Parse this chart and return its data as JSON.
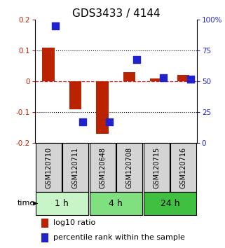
{
  "title": "GDS3433 / 4144",
  "samples": [
    "GSM120710",
    "GSM120711",
    "GSM120648",
    "GSM120708",
    "GSM120715",
    "GSM120716"
  ],
  "log10_ratio": [
    0.11,
    -0.09,
    -0.17,
    0.03,
    0.01,
    0.02
  ],
  "percentile_rank": [
    95,
    17,
    17,
    68,
    53,
    52
  ],
  "groups": [
    {
      "label": "1 h",
      "indices": [
        0,
        1
      ],
      "color": "#c8f5c8"
    },
    {
      "label": "4 h",
      "indices": [
        2,
        3
      ],
      "color": "#80e080"
    },
    {
      "label": "24 h",
      "indices": [
        4,
        5
      ],
      "color": "#40c040"
    }
  ],
  "ylim_left": [
    -0.2,
    0.2
  ],
  "ylim_right": [
    0,
    100
  ],
  "yticks_left": [
    -0.2,
    -0.1,
    0.0,
    0.1,
    0.2
  ],
  "yticks_right": [
    0,
    25,
    50,
    75,
    100
  ],
  "bar_color": "#bb2200",
  "dot_color": "#2222cc",
  "bar_width": 0.45,
  "dot_size": 45,
  "zero_line_color": "#cc2222",
  "background_color": "#ffffff",
  "legend_bar_label": "log10 ratio",
  "legend_dot_label": "percentile rank within the sample",
  "sample_box_color": "#d4d4d4",
  "title_fontsize": 11,
  "tick_fontsize": 7.5,
  "label_fontsize": 7,
  "legend_fontsize": 8,
  "group_label_fontsize": 9
}
